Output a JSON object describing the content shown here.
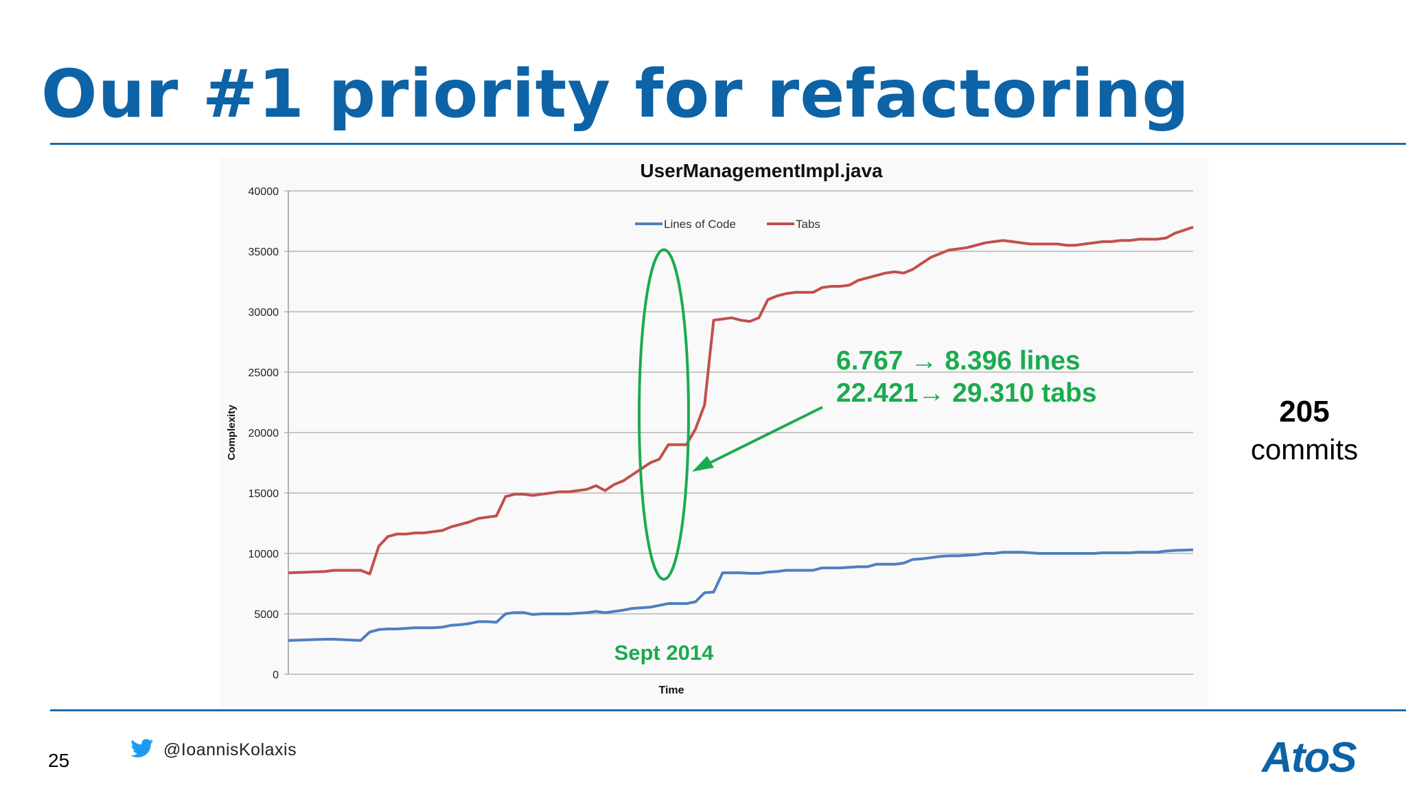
{
  "slide": {
    "title": "Our #1 priority for refactoring",
    "number": "25",
    "twitter_handle": "@IoannisKolaxis",
    "logo_text": "AtoS",
    "side_note": {
      "count": "205",
      "label": "commits"
    },
    "brand_color": "#0d63a6",
    "annotation_color": "#1aab4f"
  },
  "chart_data": {
    "type": "line",
    "title": "UserManagementImpl.java",
    "xlabel": "Time",
    "ylabel": "Complexity",
    "ylim": [
      0,
      40000
    ],
    "yticks": [
      0,
      5000,
      10000,
      15000,
      20000,
      25000,
      30000,
      35000,
      40000
    ],
    "grid": true,
    "legend_position": "top-center",
    "x": [
      0,
      4,
      5,
      8,
      9,
      10,
      11,
      12,
      13,
      14,
      15,
      16,
      17,
      18,
      19,
      20,
      21,
      22,
      23,
      24,
      25,
      26,
      27,
      28,
      29,
      30,
      31,
      32,
      33,
      34,
      35,
      36,
      37,
      38,
      39,
      40,
      41,
      42,
      43,
      44,
      45,
      46,
      47,
      48,
      49,
      50,
      51,
      52,
      53,
      54,
      55,
      56,
      57,
      58,
      59,
      60,
      61,
      62,
      63,
      64,
      65,
      66,
      67,
      68,
      69,
      70,
      71,
      72,
      73,
      74,
      75,
      76,
      77,
      78,
      79,
      80,
      81,
      82,
      83,
      84,
      85,
      86,
      87,
      88,
      89,
      90,
      91,
      92,
      93,
      94,
      95,
      96,
      97,
      98,
      100
    ],
    "series": [
      {
        "name": "Lines of Code",
        "color": "#4f7fbf",
        "values": [
          2800,
          2900,
          2900,
          2800,
          3500,
          3700,
          3750,
          3750,
          3800,
          3850,
          3850,
          3850,
          3900,
          4050,
          4100,
          4200,
          4350,
          4350,
          4300,
          5000,
          5100,
          5100,
          4950,
          5000,
          5000,
          5000,
          5000,
          5050,
          5100,
          5200,
          5100,
          5200,
          5300,
          5450,
          5500,
          5550,
          5700,
          5850,
          5850,
          5850,
          6000,
          6750,
          6800,
          8400,
          8400,
          8400,
          8350,
          8350,
          8450,
          8500,
          8600,
          8600,
          8600,
          8600,
          8800,
          8800,
          8800,
          8850,
          8900,
          8900,
          9100,
          9100,
          9100,
          9200,
          9500,
          9550,
          9650,
          9750,
          9800,
          9800,
          9850,
          9900,
          10000,
          10000,
          10100,
          10100,
          10100,
          10050,
          10000,
          10000,
          10000,
          10000,
          10000,
          10000,
          10000,
          10050,
          10050,
          10050,
          10050,
          10100,
          10100,
          10100,
          10200,
          10250,
          10300
        ]
      },
      {
        "name": "Tabs",
        "color": "#c0504d",
        "values": [
          8400,
          8500,
          8600,
          8600,
          8300,
          10600,
          11400,
          11600,
          11600,
          11700,
          11700,
          11800,
          11900,
          12200,
          12400,
          12600,
          12900,
          13000,
          13100,
          14700,
          14900,
          14900,
          14800,
          14900,
          15000,
          15100,
          15100,
          15200,
          15300,
          15600,
          15200,
          15700,
          16000,
          16500,
          17000,
          17500,
          17800,
          19000,
          19000,
          19000,
          20300,
          22300,
          29300,
          29400,
          29500,
          29300,
          29200,
          29500,
          31000,
          31300,
          31500,
          31600,
          31600,
          31600,
          32000,
          32100,
          32100,
          32200,
          32600,
          32800,
          33000,
          33200,
          33300,
          33200,
          33500,
          34000,
          34500,
          34800,
          35100,
          35200,
          35300,
          35500,
          35700,
          35800,
          35900,
          35800,
          35700,
          35600,
          35600,
          35600,
          35600,
          35500,
          35500,
          35600,
          35700,
          35800,
          35800,
          35900,
          35900,
          36000,
          36000,
          36000,
          36100,
          36500,
          37000
        ]
      }
    ],
    "annotations": {
      "highlight_label": "Sept 2014",
      "highlight_x": 41.5,
      "change_lines": "6.767 → 8.396 lines",
      "change_tabs": "22.421→ 29.310 tabs"
    }
  }
}
